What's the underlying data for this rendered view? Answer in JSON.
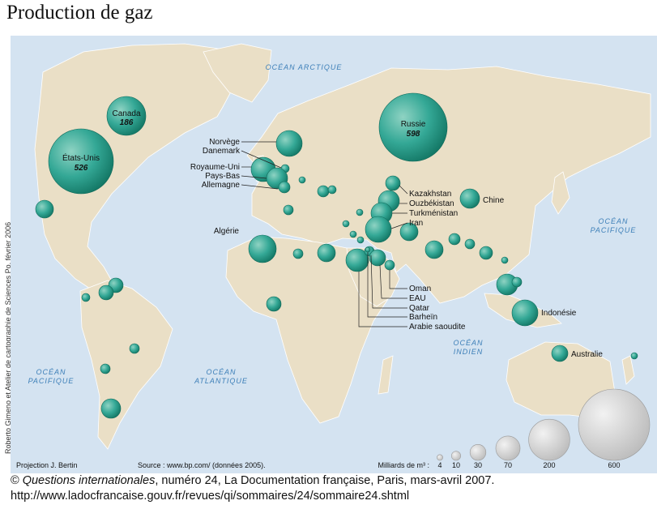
{
  "title": "Production de gaz",
  "credit": "Roberto Gimeno et Atelier de cartographie de Sciences Po, février 2006",
  "projection": "Projection J. Bertin",
  "source": "Source : www.bp.com/ (données 2005).",
  "legend": {
    "title": "Milliards de m³ :",
    "sizes": [
      {
        "value": 4,
        "label": "4"
      },
      {
        "value": 10,
        "label": "10"
      },
      {
        "value": 30,
        "label": "30"
      },
      {
        "value": 70,
        "label": "70"
      },
      {
        "value": 200,
        "label": "200"
      },
      {
        "value": 600,
        "label": "600"
      }
    ]
  },
  "oceans": [
    {
      "id": "arctique",
      "lines": [
        "OCÉAN ARCTIQUE"
      ]
    },
    {
      "id": "pacifique-est",
      "lines": [
        "OCÉAN",
        "PACIFIQUE"
      ]
    },
    {
      "id": "pacifique-ouest",
      "lines": [
        "OCÉAN",
        "PACIFIQUE"
      ]
    },
    {
      "id": "atlantique",
      "lines": [
        "OCÉAN",
        "ATLANTIQUE"
      ]
    },
    {
      "id": "indien",
      "lines": [
        "OCÉAN",
        "INDIEN"
      ]
    }
  ],
  "countries": [
    {
      "id": "russie",
      "name": "Russie",
      "value": "598"
    },
    {
      "id": "etats-unis",
      "name": "États-Unis",
      "value": "526"
    },
    {
      "id": "canada",
      "name": "Canada",
      "value": "186"
    },
    {
      "id": "norvege",
      "name": "Norvège"
    },
    {
      "id": "danemark",
      "name": "Danemark"
    },
    {
      "id": "royaume-uni",
      "name": "Royaume-Uni"
    },
    {
      "id": "pays-bas",
      "name": "Pays-Bas"
    },
    {
      "id": "allemagne",
      "name": "Allemagne"
    },
    {
      "id": "algerie",
      "name": "Algérie"
    },
    {
      "id": "kazakhstan",
      "name": "Kazakhstan"
    },
    {
      "id": "ouzbekistan",
      "name": "Ouzbékistan"
    },
    {
      "id": "turkmenistan",
      "name": "Turkménistan"
    },
    {
      "id": "iran",
      "name": "Iran"
    },
    {
      "id": "chine",
      "name": "Chine"
    },
    {
      "id": "oman",
      "name": "Oman"
    },
    {
      "id": "eau",
      "name": "EAU"
    },
    {
      "id": "qatar",
      "name": "Qatar"
    },
    {
      "id": "bahrein",
      "name": "Barheïn"
    },
    {
      "id": "arabie-saoudite",
      "name": "Arabie saoudite"
    },
    {
      "id": "indonesie",
      "name": "Indonésie"
    },
    {
      "id": "australie",
      "name": "Australie"
    }
  ],
  "footer": {
    "copyright": "©",
    "publication": "Questions internationales",
    "details": ", numéro 24, La Documentation française, Paris, mars-avril 2007.",
    "url": "http://www.ladocfrancaise.gouv.fr/revues/qi/sommaires/24/sommaire24.shtml"
  },
  "colors": {
    "ocean": "#d4e3f1",
    "land": "#eadfc6",
    "bubble": "#2a9c8a",
    "legend_bubble": "#d9d9d9",
    "ocean_label": "#3d7fb8"
  }
}
